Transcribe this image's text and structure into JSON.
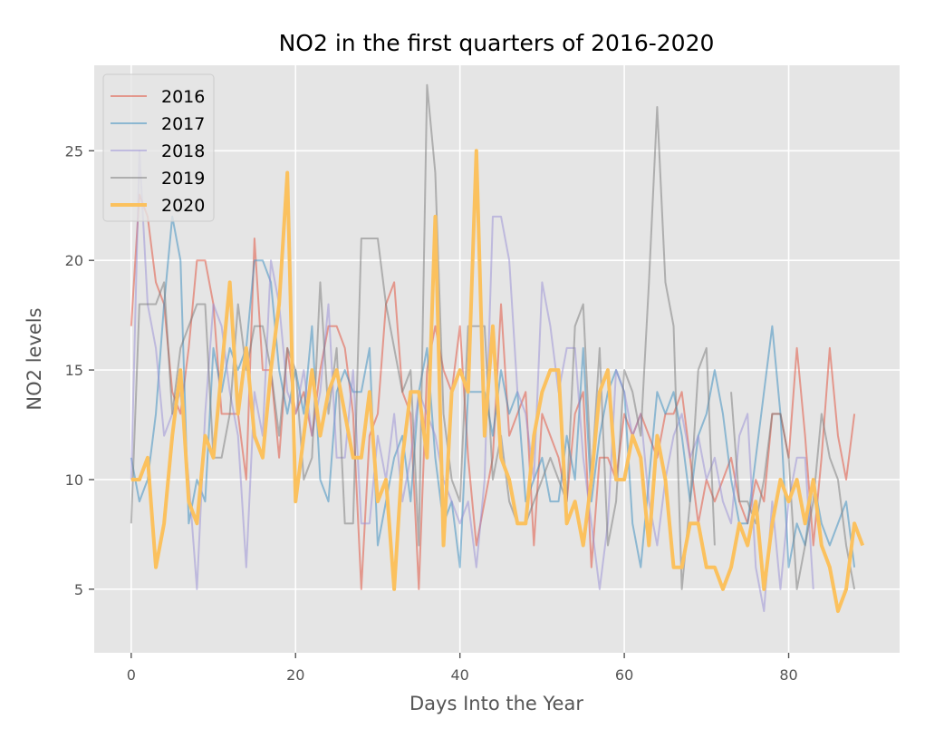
{
  "colors": {
    "background": "#e5e5e5",
    "grid": "#ffffff",
    "tick": "#555555"
  },
  "chart_data": {
    "type": "line",
    "title": "NO2 in the first quarters of 2016-2020",
    "xlabel": "Days Into the Year",
    "ylabel": "NO2 levels",
    "xlim": [
      -4.5,
      93.5
    ],
    "ylim": [
      2.1,
      28.9
    ],
    "xticks": [
      0,
      20,
      40,
      60,
      80
    ],
    "yticks": [
      5,
      10,
      15,
      20,
      25
    ],
    "grid": true,
    "legend_position": "upper-left",
    "series": [
      {
        "name": "2016",
        "color": "#E24A33",
        "alpha": 0.5,
        "width": 2,
        "values": [
          17,
          23,
          22,
          19,
          18,
          14,
          13,
          16,
          20,
          20,
          18,
          13,
          13,
          13,
          10,
          21,
          15,
          15,
          11,
          16,
          13,
          14,
          12,
          15,
          17,
          17,
          16,
          13,
          5,
          12,
          13,
          18,
          19,
          14,
          13,
          5,
          15,
          17,
          15,
          14,
          17,
          11,
          7,
          9,
          11,
          18,
          12,
          13,
          14,
          7,
          13,
          12,
          11,
          9,
          13,
          14,
          6,
          11,
          11,
          10,
          13,
          12,
          13,
          12,
          11,
          13,
          13,
          14,
          11,
          8,
          10,
          9,
          10,
          11,
          9,
          8,
          10,
          9,
          13,
          13,
          11,
          16,
          12,
          7,
          11,
          16,
          12,
          10,
          13
        ]
      },
      {
        "name": "2017",
        "color": "#348ABD",
        "alpha": 0.5,
        "width": 2,
        "values": [
          11,
          9,
          10,
          13,
          18,
          22,
          20,
          8,
          10,
          9,
          16,
          14,
          16,
          15,
          16,
          20,
          20,
          19,
          15,
          13,
          15,
          13,
          17,
          10,
          9,
          14,
          15,
          14,
          14,
          16,
          7,
          9,
          11,
          12,
          9,
          14,
          16,
          11,
          8,
          9,
          6,
          14,
          14,
          14,
          12,
          15,
          13,
          14,
          9,
          10,
          11,
          9,
          9,
          12,
          10,
          16,
          9,
          12,
          14,
          15,
          14,
          8,
          6,
          10,
          14,
          13,
          14,
          12,
          9,
          12,
          13,
          15,
          13,
          10,
          8,
          8,
          11,
          14,
          17,
          13,
          6,
          8,
          7,
          10,
          8,
          7,
          8,
          9,
          6
        ]
      },
      {
        "name": "2018",
        "color": "#988ED5",
        "alpha": 0.5,
        "width": 2,
        "values": [
          10,
          25,
          18,
          16,
          12,
          13,
          14,
          10,
          5,
          13,
          18,
          17,
          14,
          12,
          6,
          14,
          12,
          20,
          18,
          14,
          13,
          15,
          12,
          14,
          18,
          11,
          11,
          15,
          8,
          8,
          12,
          10,
          13,
          9,
          11,
          14,
          13,
          12,
          10,
          9,
          8,
          9,
          6,
          10,
          22,
          22,
          20,
          14,
          13,
          10,
          19,
          17,
          14,
          16,
          16,
          11,
          8,
          5,
          8,
          15,
          14,
          12,
          13,
          9,
          7,
          10,
          12,
          13,
          11,
          12,
          10,
          11,
          9,
          8,
          12,
          13,
          6,
          4,
          9,
          5,
          9,
          11,
          11,
          5
        ]
      },
      {
        "name": "2019",
        "color": "#777777",
        "alpha": 0.5,
        "width": 2,
        "values": [
          8,
          18,
          18,
          18,
          19,
          13,
          16,
          17,
          18,
          18,
          11,
          11,
          13,
          18,
          15,
          17,
          17,
          15,
          12,
          16,
          15,
          10,
          11,
          19,
          13,
          16,
          8,
          8,
          21,
          21,
          21,
          18,
          16,
          14,
          15,
          7,
          28,
          24,
          13,
          10,
          9,
          17,
          17,
          17,
          10,
          12,
          9,
          8,
          8,
          9,
          10,
          11,
          10,
          9,
          17,
          18,
          10,
          16,
          7,
          9,
          15,
          14,
          12,
          19,
          27,
          19,
          17,
          5,
          9,
          15,
          16,
          7,
          null,
          14,
          9,
          9,
          8,
          10,
          13,
          13,
          11,
          5,
          7,
          9,
          13,
          11,
          10,
          7,
          5
        ]
      },
      {
        "name": "2020",
        "color": "#FBC15E",
        "alpha": 1,
        "width": 4,
        "values": [
          10,
          10,
          11,
          6,
          8,
          12,
          15,
          9,
          8,
          12,
          11,
          15,
          19,
          13,
          16,
          12,
          11,
          15,
          18,
          24,
          9,
          12,
          15,
          12,
          14,
          15,
          13,
          11,
          11,
          14,
          9,
          10,
          5,
          11,
          14,
          14,
          11,
          22,
          7,
          14,
          15,
          14,
          25,
          12,
          17,
          11,
          10,
          8,
          8,
          12,
          14,
          15,
          15,
          8,
          9,
          7,
          10,
          14,
          15,
          10,
          10,
          12,
          11,
          7,
          12,
          10,
          6,
          6,
          8,
          8,
          6,
          6,
          5,
          6,
          8,
          7,
          9,
          5,
          8,
          10,
          9,
          10,
          8,
          10,
          7,
          6,
          4,
          5,
          8,
          7
        ]
      }
    ]
  }
}
